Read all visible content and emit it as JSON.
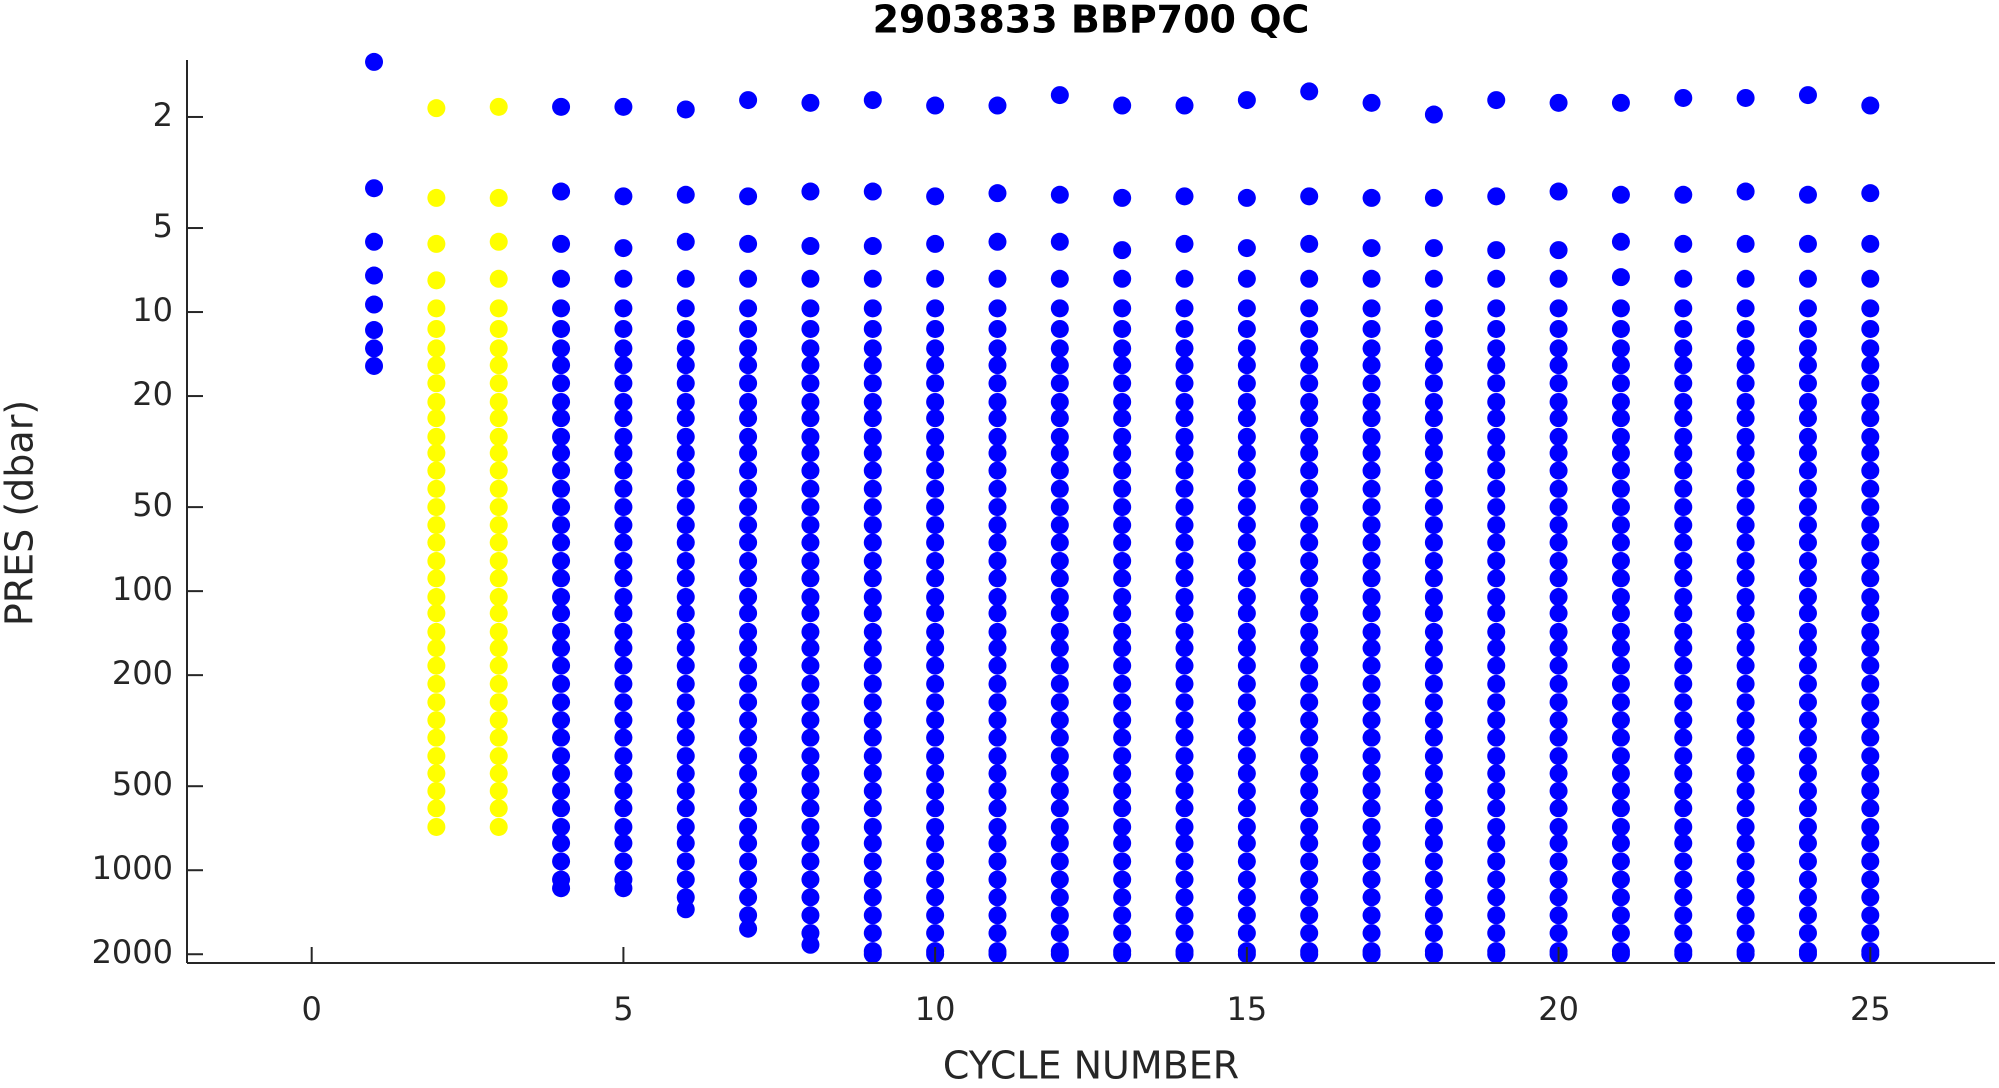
{
  "chart_data": {
    "type": "scatter",
    "title": "2903833 BBP700 QC",
    "xlabel": "CYCLE NUMBER",
    "ylabel": "PRES (dbar)",
    "xlim": [
      -2,
      27
    ],
    "xticks": [
      0,
      5,
      10,
      15,
      20,
      25
    ],
    "ylim": [
      1.25,
      2150
    ],
    "yticks": [
      2,
      5,
      10,
      20,
      50,
      100,
      200,
      500,
      1000,
      2000
    ],
    "ylog": true,
    "yreversed": true,
    "grid": false,
    "series": [
      {
        "color": "#0000ff",
        "x": 1,
        "values": [
          1.27,
          3.6,
          5.6,
          7.4,
          9.4,
          11.6,
          13.5,
          15.6
        ]
      },
      {
        "color": "#ffff00",
        "x": 2,
        "values": [
          1.86,
          3.9,
          5.7,
          7.7,
          9.7,
          11.5,
          13.5,
          15.5,
          18,
          21,
          24,
          28,
          32,
          37,
          43,
          50,
          58,
          67,
          78,
          90,
          105,
          120,
          140,
          160,
          185,
          215,
          250,
          290,
          335,
          390,
          450,
          520,
          600,
          700
        ]
      },
      {
        "color": "#ffff00",
        "x": 3,
        "values": [
          1.84,
          3.9,
          5.6,
          7.6,
          9.7,
          11.5,
          13.5,
          15.5,
          18,
          21,
          24,
          28,
          32,
          37,
          43,
          50,
          58,
          67,
          78,
          90,
          105,
          120,
          140,
          160,
          185,
          215,
          250,
          290,
          335,
          390,
          450,
          520,
          600,
          700
        ]
      },
      {
        "color": "#0000ff",
        "x": 4,
        "values": [
          1.84,
          3.7,
          5.7,
          7.6,
          9.7,
          11.5,
          13.5,
          15.5,
          18,
          21,
          24,
          28,
          32,
          37,
          43,
          50,
          58,
          67,
          78,
          90,
          105,
          120,
          140,
          160,
          185,
          215,
          250,
          290,
          335,
          390,
          450,
          520,
          600,
          700,
          800,
          930,
          1080,
          1160
        ]
      },
      {
        "color": "#0000ff",
        "x": 5,
        "values": [
          1.84,
          3.85,
          5.9,
          7.6,
          9.7,
          11.5,
          13.5,
          15.5,
          18,
          21,
          24,
          28,
          32,
          37,
          43,
          50,
          58,
          67,
          78,
          90,
          105,
          120,
          140,
          160,
          185,
          215,
          250,
          290,
          335,
          390,
          450,
          520,
          600,
          700,
          800,
          930,
          1080,
          1160
        ]
      },
      {
        "color": "#0000ff",
        "x": 6,
        "values": [
          1.88,
          3.8,
          5.6,
          7.6,
          9.7,
          11.5,
          13.5,
          15.5,
          18,
          21,
          24,
          28,
          32,
          37,
          43,
          50,
          58,
          67,
          78,
          90,
          105,
          120,
          140,
          160,
          185,
          215,
          250,
          290,
          335,
          390,
          450,
          520,
          600,
          700,
          800,
          930,
          1080,
          1250,
          1380
        ]
      },
      {
        "color": "#0000ff",
        "x": 7,
        "values": [
          1.74,
          3.85,
          5.7,
          7.6,
          9.7,
          11.5,
          13.5,
          15.5,
          18,
          21,
          24,
          28,
          32,
          37,
          43,
          50,
          58,
          67,
          78,
          90,
          105,
          120,
          140,
          160,
          185,
          215,
          250,
          290,
          335,
          390,
          450,
          520,
          600,
          700,
          800,
          930,
          1080,
          1250,
          1450,
          1620
        ]
      },
      {
        "color": "#0000ff",
        "x": 8,
        "values": [
          1.78,
          3.7,
          5.8,
          7.6,
          9.7,
          11.5,
          13.5,
          15.5,
          18,
          21,
          24,
          28,
          32,
          37,
          43,
          50,
          58,
          67,
          78,
          90,
          105,
          120,
          140,
          160,
          185,
          215,
          250,
          290,
          335,
          390,
          450,
          520,
          600,
          700,
          800,
          930,
          1080,
          1250,
          1450,
          1680,
          1850
        ]
      },
      {
        "color": "#0000ff",
        "x": 9,
        "values": [
          1.74,
          3.7,
          5.8,
          7.6,
          9.7,
          11.5,
          13.5,
          15.5,
          18,
          21,
          24,
          28,
          32,
          37,
          43,
          50,
          58,
          67,
          78,
          90,
          105,
          120,
          140,
          160,
          185,
          215,
          250,
          290,
          335,
          390,
          450,
          520,
          600,
          700,
          800,
          930,
          1080,
          1250,
          1450,
          1680,
          1950,
          2000
        ]
      },
      {
        "color": "#0000ff",
        "x": 10,
        "values": [
          1.82,
          3.85,
          5.7,
          7.6,
          9.7,
          11.5,
          13.5,
          15.5,
          18,
          21,
          24,
          28,
          32,
          37,
          43,
          50,
          58,
          67,
          78,
          90,
          105,
          120,
          140,
          160,
          185,
          215,
          250,
          290,
          335,
          390,
          450,
          520,
          600,
          700,
          800,
          930,
          1080,
          1250,
          1450,
          1680,
          1950,
          2000
        ]
      },
      {
        "color": "#0000ff",
        "x": 11,
        "values": [
          1.82,
          3.75,
          5.6,
          7.6,
          9.7,
          11.5,
          13.5,
          15.5,
          18,
          21,
          24,
          28,
          32,
          37,
          43,
          50,
          58,
          67,
          78,
          90,
          105,
          120,
          140,
          160,
          185,
          215,
          250,
          290,
          335,
          390,
          450,
          520,
          600,
          700,
          800,
          930,
          1080,
          1250,
          1450,
          1680,
          1950,
          2000
        ]
      },
      {
        "color": "#0000ff",
        "x": 12,
        "values": [
          1.67,
          3.8,
          5.6,
          7.6,
          9.7,
          11.5,
          13.5,
          15.5,
          18,
          21,
          24,
          28,
          32,
          37,
          43,
          50,
          58,
          67,
          78,
          90,
          105,
          120,
          140,
          160,
          185,
          215,
          250,
          290,
          335,
          390,
          450,
          520,
          600,
          700,
          800,
          930,
          1080,
          1250,
          1450,
          1680,
          1950,
          2000
        ]
      },
      {
        "color": "#0000ff",
        "x": 13,
        "values": [
          1.82,
          3.9,
          6,
          7.6,
          9.7,
          11.5,
          13.5,
          15.5,
          18,
          21,
          24,
          28,
          32,
          37,
          43,
          50,
          58,
          67,
          78,
          90,
          105,
          120,
          140,
          160,
          185,
          215,
          250,
          290,
          335,
          390,
          450,
          520,
          600,
          700,
          800,
          930,
          1080,
          1250,
          1450,
          1680,
          1950,
          2000
        ]
      },
      {
        "color": "#0000ff",
        "x": 14,
        "values": [
          1.82,
          3.85,
          5.7,
          7.6,
          9.7,
          11.5,
          13.5,
          15.5,
          18,
          21,
          24,
          28,
          32,
          37,
          43,
          50,
          58,
          67,
          78,
          90,
          105,
          120,
          140,
          160,
          185,
          215,
          250,
          290,
          335,
          390,
          450,
          520,
          600,
          700,
          800,
          930,
          1080,
          1250,
          1450,
          1680,
          1950,
          2000
        ]
      },
      {
        "color": "#0000ff",
        "x": 15,
        "values": [
          1.74,
          3.9,
          5.9,
          7.6,
          9.7,
          11.5,
          13.5,
          15.5,
          18,
          21,
          24,
          28,
          32,
          37,
          43,
          50,
          58,
          67,
          78,
          90,
          105,
          120,
          140,
          160,
          185,
          215,
          250,
          290,
          335,
          390,
          450,
          520,
          600,
          700,
          800,
          930,
          1080,
          1250,
          1450,
          1680,
          1950,
          2000
        ]
      },
      {
        "color": "#0000ff",
        "x": 16,
        "values": [
          1.62,
          3.85,
          5.7,
          7.6,
          9.7,
          11.5,
          13.5,
          15.5,
          18,
          21,
          24,
          28,
          32,
          37,
          43,
          50,
          58,
          67,
          78,
          90,
          105,
          120,
          140,
          160,
          185,
          215,
          250,
          290,
          335,
          390,
          450,
          520,
          600,
          700,
          800,
          930,
          1080,
          1250,
          1450,
          1680,
          1950,
          2000
        ]
      },
      {
        "color": "#0000ff",
        "x": 17,
        "values": [
          1.78,
          3.9,
          5.9,
          7.6,
          9.7,
          11.5,
          13.5,
          15.5,
          18,
          21,
          24,
          28,
          32,
          37,
          43,
          50,
          58,
          67,
          78,
          90,
          105,
          120,
          140,
          160,
          185,
          215,
          250,
          290,
          335,
          390,
          450,
          520,
          600,
          700,
          800,
          930,
          1080,
          1250,
          1450,
          1680,
          1950,
          2000
        ]
      },
      {
        "color": "#0000ff",
        "x": 18,
        "values": [
          1.96,
          3.9,
          5.9,
          7.6,
          9.7,
          11.5,
          13.5,
          15.5,
          18,
          21,
          24,
          28,
          32,
          37,
          43,
          50,
          58,
          67,
          78,
          90,
          105,
          120,
          140,
          160,
          185,
          215,
          250,
          290,
          335,
          390,
          450,
          520,
          600,
          700,
          800,
          930,
          1080,
          1250,
          1450,
          1680,
          1950,
          2000
        ]
      },
      {
        "color": "#0000ff",
        "x": 19,
        "values": [
          1.74,
          3.85,
          6,
          7.6,
          9.7,
          11.5,
          13.5,
          15.5,
          18,
          21,
          24,
          28,
          32,
          37,
          43,
          50,
          58,
          67,
          78,
          90,
          105,
          120,
          140,
          160,
          185,
          215,
          250,
          290,
          335,
          390,
          450,
          520,
          600,
          700,
          800,
          930,
          1080,
          1250,
          1450,
          1680,
          1950,
          2000
        ]
      },
      {
        "color": "#0000ff",
        "x": 20,
        "values": [
          1.78,
          3.7,
          6,
          7.6,
          9.7,
          11.5,
          13.5,
          15.5,
          18,
          21,
          24,
          28,
          32,
          37,
          43,
          50,
          58,
          67,
          78,
          90,
          105,
          120,
          140,
          160,
          185,
          215,
          250,
          290,
          335,
          390,
          450,
          520,
          600,
          700,
          800,
          930,
          1080,
          1250,
          1450,
          1680,
          1950,
          2000
        ]
      },
      {
        "color": "#0000ff",
        "x": 21,
        "values": [
          1.78,
          3.8,
          5.6,
          7.5,
          9.7,
          11.5,
          13.5,
          15.5,
          18,
          21,
          24,
          28,
          32,
          37,
          43,
          50,
          58,
          67,
          78,
          90,
          105,
          120,
          140,
          160,
          185,
          215,
          250,
          290,
          335,
          390,
          450,
          520,
          600,
          700,
          800,
          930,
          1080,
          1250,
          1450,
          1680,
          1950,
          2000
        ]
      },
      {
        "color": "#0000ff",
        "x": 22,
        "values": [
          1.71,
          3.8,
          5.7,
          7.6,
          9.7,
          11.5,
          13.5,
          15.5,
          18,
          21,
          24,
          28,
          32,
          37,
          43,
          50,
          58,
          67,
          78,
          90,
          105,
          120,
          140,
          160,
          185,
          215,
          250,
          290,
          335,
          390,
          450,
          520,
          600,
          700,
          800,
          930,
          1080,
          1250,
          1450,
          1680,
          1950,
          2000
        ]
      },
      {
        "color": "#0000ff",
        "x": 23,
        "values": [
          1.71,
          3.7,
          5.7,
          7.6,
          9.7,
          11.5,
          13.5,
          15.5,
          18,
          21,
          24,
          28,
          32,
          37,
          43,
          50,
          58,
          67,
          78,
          90,
          105,
          120,
          140,
          160,
          185,
          215,
          250,
          290,
          335,
          390,
          450,
          520,
          600,
          700,
          800,
          930,
          1080,
          1250,
          1450,
          1680,
          1950,
          2000
        ]
      },
      {
        "color": "#0000ff",
        "x": 24,
        "values": [
          1.67,
          3.8,
          5.7,
          7.6,
          9.7,
          11.5,
          13.5,
          15.5,
          18,
          21,
          24,
          28,
          32,
          37,
          43,
          50,
          58,
          67,
          78,
          90,
          105,
          120,
          140,
          160,
          185,
          215,
          250,
          290,
          335,
          390,
          450,
          520,
          600,
          700,
          800,
          930,
          1080,
          1250,
          1450,
          1680,
          1950,
          2000
        ]
      },
      {
        "color": "#0000ff",
        "x": 25,
        "values": [
          1.82,
          3.75,
          5.7,
          7.6,
          9.7,
          11.5,
          13.5,
          15.5,
          18,
          21,
          24,
          28,
          32,
          37,
          43,
          50,
          58,
          67,
          78,
          90,
          105,
          120,
          140,
          160,
          185,
          215,
          250,
          290,
          335,
          390,
          450,
          520,
          600,
          700,
          800,
          930,
          1080,
          1250,
          1450,
          1680,
          1950,
          2000
        ]
      }
    ]
  }
}
